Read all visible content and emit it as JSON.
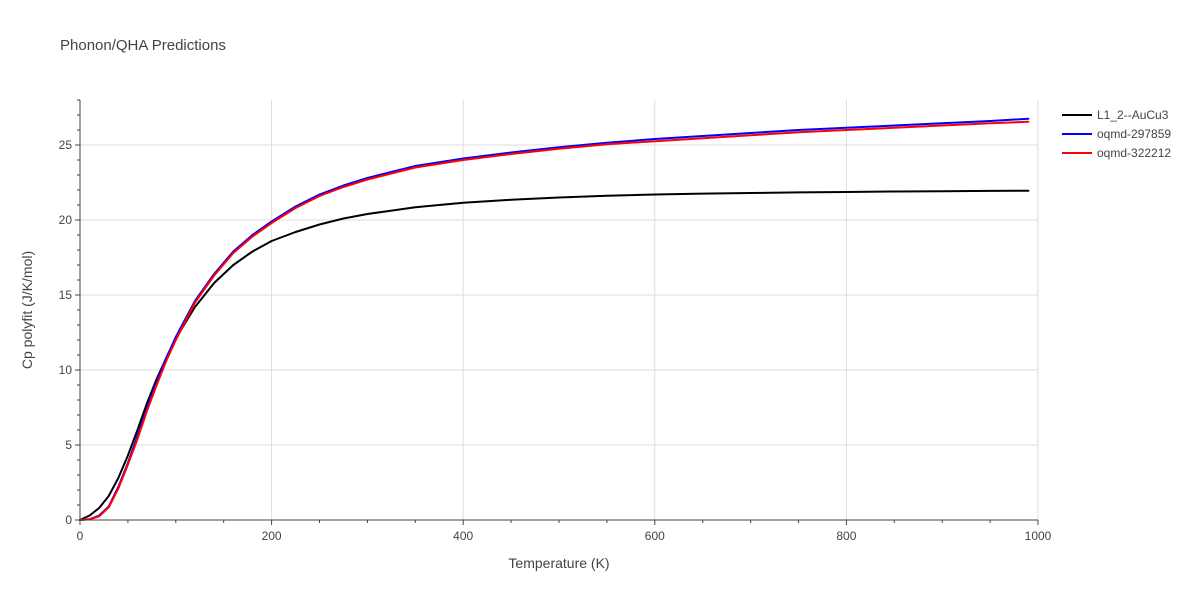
{
  "chart_data": {
    "type": "line",
    "title": "Phonon/QHA Predictions",
    "xlabel": "Temperature (K)",
    "ylabel": "Cp polyfit (J/K/mol)",
    "xlim": [
      0,
      1000
    ],
    "ylim": [
      0,
      28
    ],
    "xticks": [
      0,
      200,
      400,
      600,
      800,
      1000
    ],
    "xtick_labels": [
      "0",
      "200",
      "400",
      "600",
      "800",
      "1000"
    ],
    "yticks": [
      0,
      5,
      10,
      15,
      20,
      25
    ],
    "ytick_labels": [
      "0",
      "5",
      "10",
      "15",
      "20",
      "25"
    ],
    "grid": true,
    "legend_position": "top-right",
    "series": [
      {
        "name": "L1_2--AuCu3",
        "color": "#000000",
        "x": [
          0,
          10,
          20,
          30,
          40,
          50,
          60,
          70,
          80,
          90,
          100,
          120,
          140,
          160,
          180,
          200,
          225,
          250,
          275,
          300,
          350,
          400,
          450,
          500,
          550,
          600,
          650,
          700,
          750,
          800,
          850,
          900,
          950,
          990
        ],
        "y": [
          0,
          0.3,
          0.8,
          1.6,
          2.8,
          4.3,
          6.0,
          7.8,
          9.4,
          10.8,
          12.1,
          14.2,
          15.8,
          17.0,
          17.9,
          18.6,
          19.2,
          19.7,
          20.1,
          20.4,
          20.85,
          21.15,
          21.35,
          21.5,
          21.62,
          21.7,
          21.76,
          21.8,
          21.84,
          21.87,
          21.9,
          21.92,
          21.94,
          21.95
        ]
      },
      {
        "name": "oqmd-297859",
        "color": "#0000ff",
        "x": [
          0,
          10,
          20,
          30,
          40,
          50,
          60,
          70,
          80,
          90,
          100,
          120,
          140,
          160,
          180,
          200,
          225,
          250,
          275,
          300,
          350,
          400,
          450,
          500,
          550,
          600,
          650,
          700,
          750,
          800,
          850,
          900,
          950,
          990
        ],
        "y": [
          0,
          0.05,
          0.3,
          0.9,
          2.2,
          3.8,
          5.6,
          7.5,
          9.2,
          10.8,
          12.2,
          14.6,
          16.4,
          17.9,
          19.0,
          19.9,
          20.9,
          21.7,
          22.3,
          22.8,
          23.6,
          24.1,
          24.5,
          24.85,
          25.15,
          25.4,
          25.6,
          25.8,
          26.0,
          26.15,
          26.3,
          26.45,
          26.6,
          26.75
        ]
      },
      {
        "name": "oqmd-322212",
        "color": "#ff0000",
        "x": [
          0,
          10,
          20,
          30,
          40,
          50,
          60,
          70,
          80,
          90,
          100,
          120,
          140,
          160,
          180,
          200,
          225,
          250,
          275,
          300,
          350,
          400,
          450,
          500,
          550,
          600,
          650,
          700,
          750,
          800,
          850,
          900,
          950,
          990
        ],
        "y": [
          0,
          0.05,
          0.25,
          0.85,
          2.1,
          3.7,
          5.4,
          7.3,
          9.0,
          10.6,
          12.0,
          14.5,
          16.3,
          17.8,
          18.9,
          19.8,
          20.8,
          21.6,
          22.2,
          22.7,
          23.5,
          24.0,
          24.4,
          24.75,
          25.05,
          25.25,
          25.45,
          25.65,
          25.85,
          26.0,
          26.15,
          26.3,
          26.45,
          26.55
        ]
      }
    ]
  }
}
